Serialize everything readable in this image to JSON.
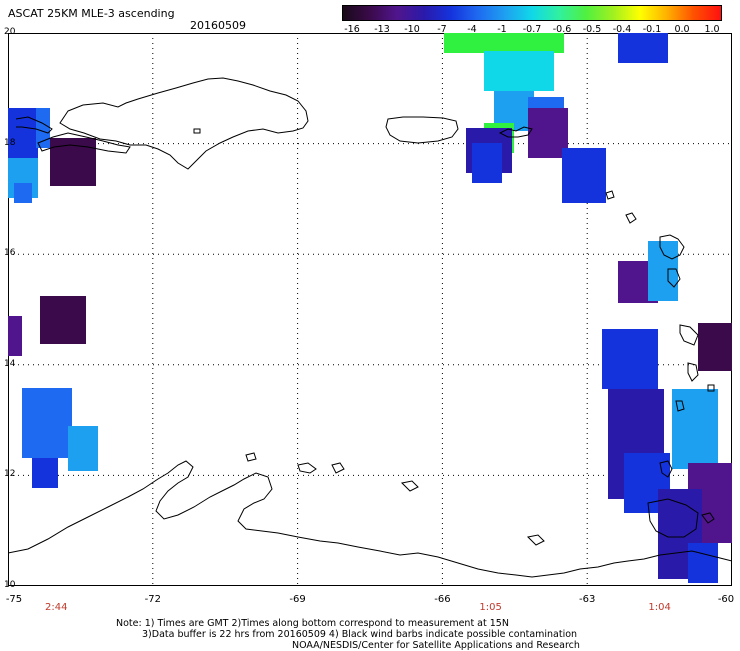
{
  "header": {
    "title": "ASCAT 25KM MLE-3 ascending",
    "date": "20160509"
  },
  "colorbar": {
    "ticks": [
      "-16",
      "-13",
      "-10",
      "-7",
      "-4",
      "-1",
      "-0.7",
      "-0.6",
      "-0.5",
      "-0.4",
      "-0.1",
      "0.0",
      "1.0"
    ],
    "colors": [
      "#1a0a1a",
      "#3a0a4a",
      "#50158c",
      "#2a1aaa",
      "#1533dd",
      "#1e6af0",
      "#1ea0f0",
      "#10d8e8",
      "#30f0a0",
      "#50f040",
      "#a0f020",
      "#ffff00",
      "#ffb000",
      "#ff5000",
      "#ff1010"
    ]
  },
  "map": {
    "lat_labels": [
      "20",
      "18",
      "16",
      "14",
      "12",
      "10"
    ],
    "lon_labels": [
      "-75",
      "-72",
      "-69",
      "-66",
      "-63",
      "-60"
    ],
    "lon_min": -75,
    "lon_max": -60,
    "lat_min": 10,
    "lat_max": 20,
    "pass_times": [
      {
        "lon": -74,
        "label": "2:44"
      },
      {
        "lon": -65,
        "label": "1:05"
      },
      {
        "lon": -61.5,
        "label": "1:04"
      }
    ],
    "colors": {
      "deep_purple": "#3a0a4a",
      "purple": "#50158c",
      "indigo": "#2a1aaa",
      "blue": "#1533dd",
      "mid_blue": "#1e6af0",
      "light_blue": "#1ea0f0",
      "cyan": "#10d8e8",
      "green": "#30f040"
    }
  },
  "notes": {
    "line1": "Note: 1) Times are GMT 2)Times along bottom correspond to measurement at 15N",
    "line2": "3)Data buffer is 22 hrs from 20160509 4) Black wind barbs indicate possible contamination",
    "line3": "NOAA/NESDIS/Center for Satellite Applications and Research"
  }
}
